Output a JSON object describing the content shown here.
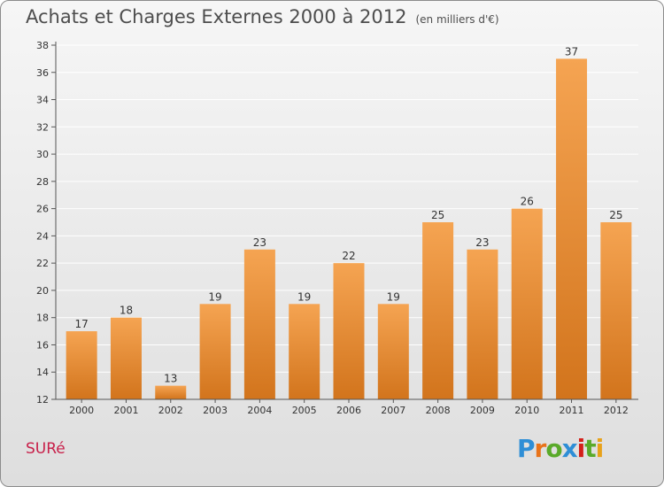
{
  "header": {
    "title": "Achats et Charges Externes 2000 à 2012",
    "subtitle": "(en milliers d'€)"
  },
  "footer": {
    "town": "SURé",
    "brand": "Proxiti",
    "brand_letters": [
      {
        "ch": "P",
        "color": "#2e8ed6"
      },
      {
        "ch": "r",
        "color": "#e8731a"
      },
      {
        "ch": "o",
        "color": "#5aaa2a"
      },
      {
        "ch": "x",
        "color": "#2e8ed6"
      },
      {
        "ch": "i",
        "color": "#d4201a"
      },
      {
        "ch": "t",
        "color": "#5aaa2a"
      },
      {
        "ch": "i",
        "color": "#e8a21a"
      }
    ]
  },
  "colors": {
    "bar_top": "#f5a452",
    "bar_bottom": "#d2741c",
    "axis": "#555555",
    "grid": "#ffffff",
    "text": "#333333"
  },
  "chart_data": {
    "type": "bar",
    "categories": [
      "2000",
      "2001",
      "2002",
      "2003",
      "2004",
      "2005",
      "2006",
      "2007",
      "2008",
      "2009",
      "2010",
      "2011",
      "2012"
    ],
    "values": [
      17,
      18,
      13,
      19,
      23,
      19,
      22,
      19,
      25,
      23,
      26,
      37,
      25
    ],
    "ylim": [
      12,
      38
    ],
    "yticks": [
      12,
      14,
      16,
      18,
      20,
      22,
      24,
      26,
      28,
      30,
      32,
      34,
      36,
      38
    ],
    "grid": true,
    "legend": "none"
  }
}
